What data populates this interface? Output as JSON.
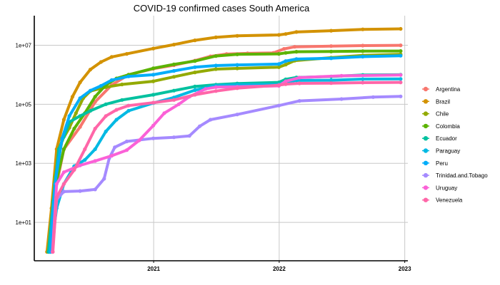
{
  "chart_data": {
    "type": "line",
    "title": "COVID-19 confirmed cases South America",
    "xlabel": "",
    "ylabel": "",
    "x_scale": "date",
    "y_scale": "log10",
    "xlim": [
      "2020-01-20",
      "2023-01-10"
    ],
    "ylim": [
      0.5,
      100000000
    ],
    "x_ticks": [
      {
        "value": "2021-01-01",
        "label": "2021"
      },
      {
        "value": "2022-01-01",
        "label": "2022"
      },
      {
        "value": "2023-01-01",
        "label": "2023"
      }
    ],
    "y_ticks": [
      {
        "value": 10,
        "label": "1e+01"
      },
      {
        "value": 1000,
        "label": "1e+03"
      },
      {
        "value": 100000,
        "label": "1e+05"
      },
      {
        "value": 10000000,
        "label": "1e+07"
      }
    ],
    "grid": true,
    "legend_position": "right",
    "series": [
      {
        "name": "Argentina",
        "color": "#F8766D",
        "points": [
          [
            "2020-03-03",
            1
          ],
          [
            "2020-03-20",
            100
          ],
          [
            "2020-04-15",
            3000
          ],
          [
            "2020-06-01",
            17000
          ],
          [
            "2020-07-15",
            120000
          ],
          [
            "2020-09-01",
            450000
          ],
          [
            "2020-10-20",
            1000000
          ],
          [
            "2020-12-31",
            1600000
          ],
          [
            "2021-03-01",
            2100000
          ],
          [
            "2021-05-01",
            3000000
          ],
          [
            "2021-06-15",
            4200000
          ],
          [
            "2021-08-01",
            5000000
          ],
          [
            "2021-10-01",
            5300000
          ],
          [
            "2021-12-15",
            5500000
          ],
          [
            "2022-01-15",
            7500000
          ],
          [
            "2022-02-15",
            8800000
          ],
          [
            "2022-06-01",
            9300000
          ],
          [
            "2022-09-01",
            9700000
          ],
          [
            "2022-12-20",
            9900000
          ]
        ]
      },
      {
        "name": "Brazil",
        "color": "#D39200",
        "points": [
          [
            "2020-02-26",
            1
          ],
          [
            "2020-03-10",
            30
          ],
          [
            "2020-03-25",
            3000
          ],
          [
            "2020-04-15",
            30000
          ],
          [
            "2020-05-10",
            180000
          ],
          [
            "2020-06-01",
            550000
          ],
          [
            "2020-07-01",
            1500000
          ],
          [
            "2020-08-01",
            2700000
          ],
          [
            "2020-09-01",
            4000000
          ],
          [
            "2020-10-15",
            5100000
          ],
          [
            "2020-12-31",
            7700000
          ],
          [
            "2021-03-01",
            10500000
          ],
          [
            "2021-05-01",
            14600000
          ],
          [
            "2021-07-01",
            18500000
          ],
          [
            "2021-09-01",
            20800000
          ],
          [
            "2021-12-31",
            22300000
          ],
          [
            "2022-01-20",
            24000000
          ],
          [
            "2022-02-20",
            28000000
          ],
          [
            "2022-06-01",
            31000000
          ],
          [
            "2022-09-01",
            34500000
          ],
          [
            "2022-12-20",
            35700000
          ]
        ]
      },
      {
        "name": "Chile",
        "color": "#93AA00",
        "points": [
          [
            "2020-03-03",
            1
          ],
          [
            "2020-03-20",
            340
          ],
          [
            "2020-04-10",
            6000
          ],
          [
            "2020-05-01",
            16000
          ],
          [
            "2020-05-20",
            50000
          ],
          [
            "2020-06-10",
            160000
          ],
          [
            "2020-07-01",
            280000
          ],
          [
            "2020-08-15",
            380000
          ],
          [
            "2020-10-01",
            470000
          ],
          [
            "2020-12-31",
            600000
          ],
          [
            "2021-03-01",
            850000
          ],
          [
            "2021-05-01",
            1200000
          ],
          [
            "2021-07-01",
            1550000
          ],
          [
            "2021-09-01",
            1640000
          ],
          [
            "2021-12-31",
            1800000
          ],
          [
            "2022-01-20",
            2200000
          ],
          [
            "2022-02-15",
            3000000
          ],
          [
            "2022-06-01",
            3800000
          ],
          [
            "2022-09-01",
            4500000
          ],
          [
            "2022-12-20",
            4900000
          ]
        ]
      },
      {
        "name": "Colombia",
        "color": "#5BB300",
        "points": [
          [
            "2020-03-06",
            1
          ],
          [
            "2020-03-20",
            150
          ],
          [
            "2020-04-15",
            3000
          ],
          [
            "2020-05-15",
            15000
          ],
          [
            "2020-06-15",
            50000
          ],
          [
            "2020-07-15",
            180000
          ],
          [
            "2020-08-15",
            450000
          ],
          [
            "2020-09-15",
            750000
          ],
          [
            "2020-10-20",
            1000000
          ],
          [
            "2020-12-31",
            1650000
          ],
          [
            "2021-03-01",
            2250000
          ],
          [
            "2021-05-01",
            2900000
          ],
          [
            "2021-07-01",
            4300000
          ],
          [
            "2021-09-01",
            4900000
          ],
          [
            "2021-12-31",
            5100000
          ],
          [
            "2022-01-20",
            5500000
          ],
          [
            "2022-02-20",
            6000000
          ],
          [
            "2022-06-01",
            6100000
          ],
          [
            "2022-09-01",
            6300000
          ],
          [
            "2022-12-20",
            6350000
          ]
        ]
      },
      {
        "name": "Ecuador",
        "color": "#00C19F",
        "points": [
          [
            "2020-03-01",
            1
          ],
          [
            "2020-03-15",
            50
          ],
          [
            "2020-03-31",
            3000
          ],
          [
            "2020-04-15",
            8000
          ],
          [
            "2020-05-01",
            25000
          ],
          [
            "2020-06-01",
            40000
          ],
          [
            "2020-07-01",
            60000
          ],
          [
            "2020-08-15",
            100000
          ],
          [
            "2020-10-01",
            140000
          ],
          [
            "2020-12-31",
            210000
          ],
          [
            "2021-03-01",
            290000
          ],
          [
            "2021-05-01",
            400000
          ],
          [
            "2021-07-01",
            460000
          ],
          [
            "2021-09-01",
            505000
          ],
          [
            "2021-12-31",
            550000
          ],
          [
            "2022-01-20",
            700000
          ],
          [
            "2022-02-20",
            810000
          ],
          [
            "2022-06-01",
            870000
          ],
          [
            "2022-09-01",
            980000
          ],
          [
            "2022-12-20",
            1000000
          ]
        ]
      },
      {
        "name": "Paraguay",
        "color": "#00B9E3",
        "points": [
          [
            "2020-03-08",
            1
          ],
          [
            "2020-03-25",
            30
          ],
          [
            "2020-04-15",
            200
          ],
          [
            "2020-05-15",
            800
          ],
          [
            "2020-06-15",
            1300
          ],
          [
            "2020-07-15",
            3000
          ],
          [
            "2020-08-15",
            12000
          ],
          [
            "2020-09-15",
            30000
          ],
          [
            "2020-10-20",
            60000
          ],
          [
            "2020-12-31",
            110000
          ],
          [
            "2021-03-01",
            170000
          ],
          [
            "2021-05-01",
            300000
          ],
          [
            "2021-07-01",
            430000
          ],
          [
            "2021-09-01",
            458000
          ],
          [
            "2021-12-31",
            470000
          ],
          [
            "2022-01-20",
            560000
          ],
          [
            "2022-02-20",
            640000
          ],
          [
            "2022-06-01",
            650000
          ],
          [
            "2022-09-01",
            710000
          ],
          [
            "2022-12-20",
            720000
          ]
        ]
      },
      {
        "name": "Peru",
        "color": "#00ADFA",
        "points": [
          [
            "2020-03-06",
            1
          ],
          [
            "2020-03-20",
            200
          ],
          [
            "2020-04-10",
            7000
          ],
          [
            "2020-05-01",
            40000
          ],
          [
            "2020-06-01",
            160000
          ],
          [
            "2020-07-01",
            290000
          ],
          [
            "2020-08-01",
            420000
          ],
          [
            "2020-09-01",
            660000
          ],
          [
            "2020-10-20",
            880000
          ],
          [
            "2020-12-31",
            1000000
          ],
          [
            "2021-03-01",
            1350000
          ],
          [
            "2021-05-01",
            1800000
          ],
          [
            "2021-07-01",
            2050000
          ],
          [
            "2021-09-01",
            2150000
          ],
          [
            "2021-12-31",
            2300000
          ],
          [
            "2022-01-20",
            2900000
          ],
          [
            "2022-02-20",
            3400000
          ],
          [
            "2022-06-01",
            3600000
          ],
          [
            "2022-09-01",
            4100000
          ],
          [
            "2022-12-20",
            4400000
          ]
        ]
      },
      {
        "name": "Trinidad.and.Tobago",
        "color": "#A58AFF",
        "points": [
          [
            "2020-03-13",
            1
          ],
          [
            "2020-03-25",
            60
          ],
          [
            "2020-04-15",
            110
          ],
          [
            "2020-06-01",
            115
          ],
          [
            "2020-07-15",
            130
          ],
          [
            "2020-08-10",
            300
          ],
          [
            "2020-08-25",
            1500
          ],
          [
            "2020-09-10",
            3500
          ],
          [
            "2020-10-15",
            5500
          ],
          [
            "2020-12-31",
            7000
          ],
          [
            "2021-03-01",
            7600
          ],
          [
            "2021-04-15",
            8500
          ],
          [
            "2021-05-15",
            18000
          ],
          [
            "2021-06-15",
            30000
          ],
          [
            "2021-09-01",
            45000
          ],
          [
            "2021-12-31",
            90000
          ],
          [
            "2022-03-01",
            130000
          ],
          [
            "2022-07-01",
            150000
          ],
          [
            "2022-10-01",
            175000
          ],
          [
            "2022-12-20",
            185000
          ]
        ]
      },
      {
        "name": "Uruguay",
        "color": "#FB61D7",
        "points": [
          [
            "2020-03-13",
            1
          ],
          [
            "2020-03-25",
            200
          ],
          [
            "2020-04-15",
            500
          ],
          [
            "2020-06-01",
            850
          ],
          [
            "2020-07-15",
            1200
          ],
          [
            "2020-09-01",
            1800
          ],
          [
            "2020-10-15",
            2800
          ],
          [
            "2020-11-20",
            6000
          ],
          [
            "2020-12-31",
            19000
          ],
          [
            "2021-02-01",
            50000
          ],
          [
            "2021-03-15",
            100000
          ],
          [
            "2021-04-15",
            180000
          ],
          [
            "2021-06-01",
            330000
          ],
          [
            "2021-07-01",
            380000
          ],
          [
            "2021-09-01",
            390000
          ],
          [
            "2021-12-31",
            420000
          ],
          [
            "2022-01-20",
            600000
          ],
          [
            "2022-03-01",
            800000
          ],
          [
            "2022-07-01",
            920000
          ],
          [
            "2022-12-20",
            980000
          ]
        ]
      },
      {
        "name": "Venezuela",
        "color": "#FF66A8",
        "points": [
          [
            "2020-03-14",
            1
          ],
          [
            "2020-03-25",
            70
          ],
          [
            "2020-04-15",
            200
          ],
          [
            "2020-05-15",
            600
          ],
          [
            "2020-06-15",
            3000
          ],
          [
            "2020-07-15",
            15000
          ],
          [
            "2020-08-15",
            40000
          ],
          [
            "2020-09-15",
            65000
          ],
          [
            "2020-10-20",
            90000
          ],
          [
            "2020-12-31",
            113000
          ],
          [
            "2021-03-01",
            140000
          ],
          [
            "2021-05-01",
            210000
          ],
          [
            "2021-07-01",
            280000
          ],
          [
            "2021-09-01",
            350000
          ],
          [
            "2021-12-31",
            445000
          ],
          [
            "2022-01-20",
            480000
          ],
          [
            "2022-03-01",
            510000
          ],
          [
            "2022-06-01",
            520000
          ],
          [
            "2022-09-01",
            540000
          ],
          [
            "2022-12-20",
            550000
          ]
        ]
      }
    ]
  }
}
